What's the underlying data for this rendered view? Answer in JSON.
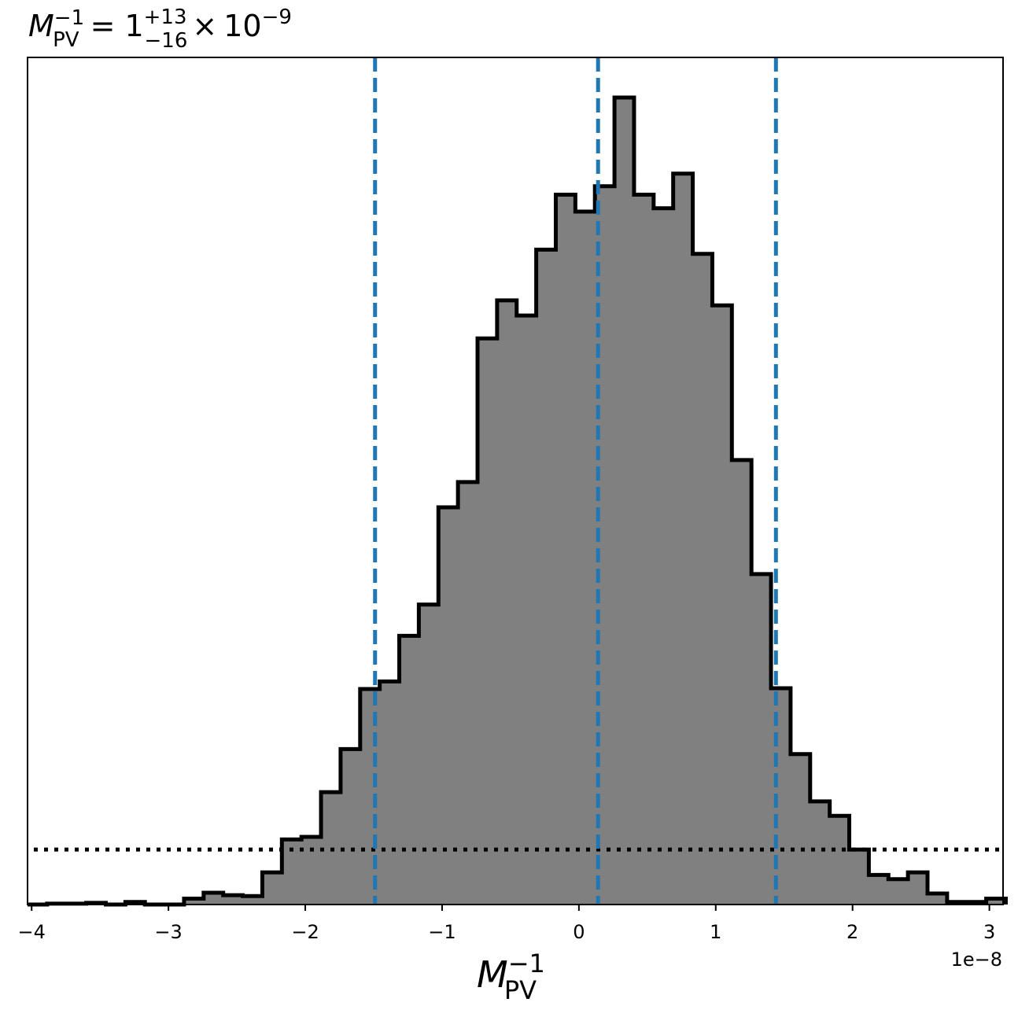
{
  "chart_data": {
    "type": "histogram",
    "title": {
      "symbol": "M",
      "symbol_sup": "−1",
      "symbol_sub": "PV",
      "equals": "=",
      "value": "1",
      "upper_err": "+13",
      "lower_err": "−16",
      "times": "×",
      "base": "10",
      "exponent": "−9"
    },
    "xlabel": {
      "symbol": "M",
      "sup": "−1",
      "sub": "PV"
    },
    "x_offset_label": "1e−8",
    "x_unit_scale": 1e-08,
    "xlim": [
      -4.03,
      3.1
    ],
    "ylim": [
      0,
      1.0
    ],
    "x_ticks": [
      {
        "value": -4,
        "label": "−4"
      },
      {
        "value": -3,
        "label": "−3"
      },
      {
        "value": -2,
        "label": "−2"
      },
      {
        "value": -1,
        "label": "−1"
      },
      {
        "value": 0,
        "label": "0"
      },
      {
        "value": 1,
        "label": "1"
      },
      {
        "value": 2,
        "label": "2"
      },
      {
        "value": 3,
        "label": "3"
      }
    ],
    "y_ticks_shown": false,
    "bin_edges": [
      -4.03,
      -3.887,
      -3.744,
      -3.601,
      -3.458,
      -3.315,
      -3.172,
      -3.029,
      -2.886,
      -2.743,
      -2.6,
      -2.457,
      -2.314,
      -2.171,
      -2.028,
      -1.885,
      -1.742,
      -1.599,
      -1.456,
      -1.313,
      -1.17,
      -1.027,
      -0.884,
      -0.741,
      -0.598,
      -0.455,
      -0.312,
      -0.169,
      -0.026,
      0.117,
      0.26,
      0.403,
      0.546,
      0.689,
      0.832,
      0.975,
      1.118,
      1.261,
      1.404,
      1.547,
      1.69,
      1.833,
      1.976,
      2.119,
      2.262,
      2.405,
      2.548,
      2.691,
      2.834,
      2.977,
      3.12
    ],
    "counts": [
      0.0,
      0.001,
      0.001,
      0.002,
      0.0,
      0.003,
      0.0,
      0.0,
      0.007,
      0.014,
      0.011,
      0.01,
      0.038,
      0.077,
      0.08,
      0.133,
      0.184,
      0.255,
      0.264,
      0.318,
      0.355,
      0.47,
      0.5,
      0.67,
      0.715,
      0.697,
      0.775,
      0.84,
      0.82,
      0.85,
      0.955,
      0.84,
      0.824,
      0.865,
      0.77,
      0.709,
      0.526,
      0.391,
      0.256,
      0.178,
      0.122,
      0.105,
      0.065,
      0.035,
      0.03,
      0.038,
      0.013,
      0.003,
      0.003,
      0.007
    ],
    "vertical_lines": [
      {
        "x": -1.49,
        "style": "dashed",
        "color": "#1f77b4"
      },
      {
        "x": 0.14,
        "style": "dashed",
        "color": "#1f77b4"
      },
      {
        "x": 1.44,
        "style": "dashed",
        "color": "#1f77b4"
      }
    ],
    "prior_line": {
      "style": "dotted",
      "color": "#000000",
      "y": 0.065
    },
    "colors": {
      "fill": "#808080",
      "edge": "#000000",
      "quantile": "#1f77b4"
    }
  }
}
